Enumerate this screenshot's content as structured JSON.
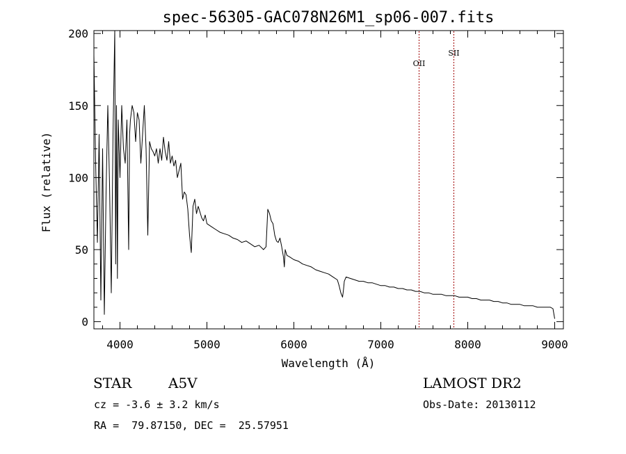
{
  "chart_data": {
    "type": "line",
    "title": "spec-56305-GAC078N26M1_sp06-007.fits",
    "xlabel": "Wavelength (Å)",
    "ylabel": "Flux (relative)",
    "xlim": [
      3700,
      9100
    ],
    "ylim": [
      -5,
      202
    ],
    "xticks": [
      4000,
      5000,
      6000,
      7000,
      8000,
      9000
    ],
    "yticks": [
      0,
      50,
      100,
      150,
      200
    ],
    "grid": false,
    "series": [
      {
        "color": "#000000",
        "x": [
          3700,
          3720,
          3740,
          3760,
          3780,
          3800,
          3820,
          3840,
          3860,
          3880,
          3900,
          3920,
          3940,
          3950,
          3960,
          3970,
          3980,
          4000,
          4020,
          4040,
          4060,
          4080,
          4100,
          4110,
          4120,
          4140,
          4160,
          4180,
          4200,
          4220,
          4240,
          4260,
          4280,
          4300,
          4320,
          4340,
          4360,
          4380,
          4400,
          4420,
          4440,
          4460,
          4480,
          4500,
          4520,
          4540,
          4560,
          4580,
          4600,
          4620,
          4640,
          4660,
          4680,
          4700,
          4720,
          4740,
          4760,
          4780,
          4800,
          4820,
          4840,
          4860,
          4880,
          4900,
          4920,
          4940,
          4960,
          4980,
          5000,
          5050,
          5100,
          5150,
          5200,
          5250,
          5300,
          5350,
          5400,
          5450,
          5500,
          5550,
          5600,
          5650,
          5680,
          5700,
          5720,
          5740,
          5760,
          5780,
          5800,
          5820,
          5840,
          5860,
          5880,
          5890,
          5900,
          5920,
          5950,
          6000,
          6050,
          6100,
          6150,
          6200,
          6250,
          6300,
          6350,
          6400,
          6450,
          6500,
          6520,
          6540,
          6560,
          6570,
          6580,
          6600,
          6650,
          6700,
          6750,
          6800,
          6850,
          6900,
          6950,
          7000,
          7050,
          7100,
          7150,
          7200,
          7250,
          7300,
          7350,
          7400,
          7450,
          7500,
          7550,
          7600,
          7650,
          7700,
          7750,
          7800,
          7850,
          7900,
          7950,
          8000,
          8050,
          8100,
          8150,
          8200,
          8250,
          8300,
          8350,
          8400,
          8450,
          8500,
          8550,
          8600,
          8650,
          8700,
          8750,
          8800,
          8850,
          8900,
          8950,
          8980,
          9000
        ],
        "y": [
          185,
          110,
          55,
          130,
          15,
          120,
          5,
          90,
          150,
          95,
          20,
          130,
          202,
          40,
          150,
          30,
          140,
          100,
          150,
          120,
          110,
          140,
          50,
          130,
          140,
          150,
          145,
          125,
          145,
          140,
          110,
          130,
          150,
          120,
          60,
          125,
          120,
          118,
          115,
          120,
          110,
          120,
          112,
          128,
          118,
          112,
          125,
          110,
          115,
          108,
          112,
          100,
          105,
          110,
          85,
          90,
          88,
          78,
          60,
          48,
          80,
          85,
          75,
          80,
          76,
          72,
          70,
          74,
          68,
          66,
          64,
          62,
          61,
          60,
          58,
          57,
          55,
          56,
          54,
          52,
          53,
          50,
          52,
          78,
          75,
          70,
          68,
          60,
          56,
          55,
          58,
          52,
          45,
          38,
          50,
          46,
          45,
          43,
          42,
          40,
          39,
          38,
          36,
          35,
          34,
          33,
          31,
          29,
          25,
          20,
          17,
          22,
          28,
          31,
          30,
          29,
          28,
          28,
          27,
          27,
          26,
          25,
          25,
          24,
          24,
          23,
          23,
          22,
          22,
          21,
          21,
          20,
          20,
          19,
          19,
          19,
          18,
          18,
          18,
          17,
          17,
          17,
          16,
          16,
          15,
          15,
          15,
          14,
          14,
          13,
          13,
          12,
          12,
          12,
          11,
          11,
          11,
          10,
          10,
          10,
          10,
          9,
          2
        ]
      }
    ],
    "annotations": [
      {
        "label": "OII",
        "x": 7440
      },
      {
        "label": "SII",
        "x": 7840
      }
    ]
  },
  "info": {
    "obj_class": "STAR",
    "subclass": "A5V",
    "velocity": "cz = -3.6 ± 3.2 km/s",
    "coords": "RA =  79.87150, DEC =  25.57951",
    "survey": "LAMOST DR2",
    "obs_date": "Obs-Date: 20130112"
  }
}
